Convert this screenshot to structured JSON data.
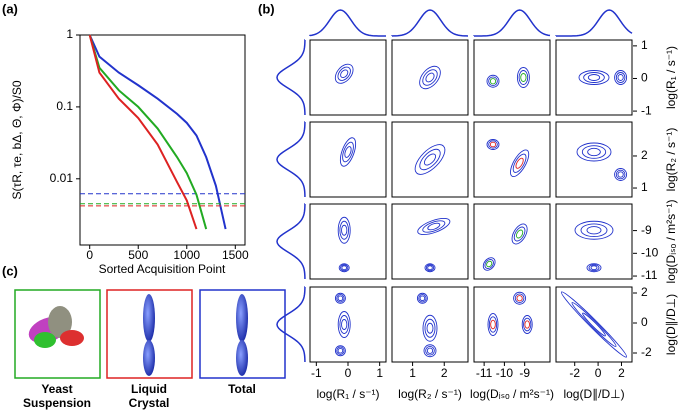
{
  "panel_a": {
    "label": "(a)",
    "type": "line",
    "y_label": "S(τR, τe, bΔ, Θ, Φ)/S0",
    "x_label": "Sorted Acquisition Point",
    "log_y": true,
    "xlim": [
      -100,
      1600
    ],
    "ylim": [
      0.0012,
      1
    ],
    "xticks": [
      0,
      500,
      1000,
      1500
    ],
    "yticks": [
      1,
      0.1,
      0.01
    ],
    "x": [
      0,
      100,
      300,
      500,
      700,
      900,
      1000,
      1100,
      1200,
      1300,
      1400
    ],
    "series": [
      {
        "color": "#2233cc",
        "values": [
          1,
          0.5,
          0.3,
          0.2,
          0.13,
          0.08,
          0.06,
          0.04,
          0.02,
          0.008,
          0.002
        ],
        "threshold": 0.0062
      },
      {
        "color": "#22aa22",
        "values": [
          1,
          0.35,
          0.17,
          0.1,
          0.05,
          0.02,
          0.012,
          0.006,
          0.002,
          null,
          null
        ],
        "threshold": 0.0045
      },
      {
        "color": "#dd2222",
        "values": [
          1,
          0.3,
          0.13,
          0.07,
          0.03,
          0.009,
          0.005,
          0.002,
          null,
          null,
          null
        ],
        "threshold": 0.0042
      }
    ]
  },
  "panel_b": {
    "label": "(b)",
    "columns": [
      {
        "label": "log(R₁ / s⁻¹)",
        "lim": [
          -1.2,
          1.2
        ],
        "ticks": [
          -1,
          0,
          1
        ]
      },
      {
        "label": "log(R₂ / s⁻¹)",
        "lim": [
          0.35,
          2.75
        ],
        "ticks": [
          1,
          2
        ]
      },
      {
        "label": "log(Dᵢₛₒ / m²s⁻¹)",
        "lim": [
          -11.5,
          -7.75
        ],
        "ticks": [
          -11,
          -10,
          -9
        ]
      },
      {
        "label": "log(D∥/D⊥)",
        "lim": [
          -3.6,
          2.9
        ],
        "ticks": [
          -2,
          0,
          2
        ]
      }
    ],
    "rows": [
      {
        "label": "log(R₁ / s⁻¹)",
        "lim": [
          -1.12,
          1.18
        ],
        "ticks": [
          1,
          0,
          -1
        ]
      },
      {
        "label": "log(R₂ / s⁻¹)",
        "lim": [
          0.72,
          3.06
        ],
        "ticks": [
          2,
          1
        ]
      },
      {
        "label": "log(Dᵢₛₒ / m²s⁻¹)",
        "lim": [
          -11.13,
          -7.83
        ],
        "ticks": [
          -9,
          -10,
          -11
        ]
      },
      {
        "label": "log(D∥/D⊥)",
        "lim": [
          -2.6,
          2.4
        ],
        "ticks": [
          2,
          0,
          -2
        ]
      }
    ]
  },
  "panel_c": {
    "label": "(c)",
    "boxes": [
      {
        "lines": [
          "Yeast",
          "Suspension"
        ],
        "color": "#22aa22"
      },
      {
        "lines": [
          "Liquid",
          "Crystal"
        ],
        "color": "#dd2222"
      },
      {
        "lines": [
          "Total"
        ],
        "color": "#2233cc"
      }
    ]
  }
}
